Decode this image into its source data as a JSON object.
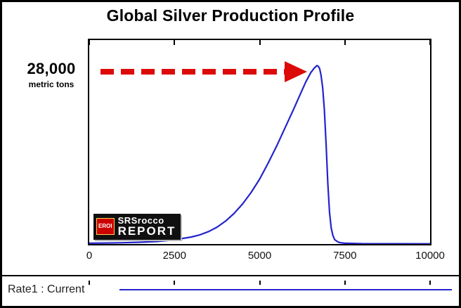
{
  "title": "Global Silver Production Profile",
  "annotation": {
    "value": "28,000",
    "unit": "metric tons"
  },
  "legend": {
    "label": "Rate1 : Current"
  },
  "logo": {
    "badge": "EROI",
    "line1": "SRSrocco",
    "line2": "REPORT"
  },
  "colors": {
    "curve": "#2323cc",
    "arrow": "#dd0a0a",
    "legend_line": "#2323cc",
    "axis": "#000000"
  },
  "chart_data": {
    "type": "line",
    "title": "Global Silver Production Profile",
    "xlabel": "",
    "ylabel": "metric tons",
    "xlim": [
      0,
      10000
    ],
    "ylim": [
      0,
      32000
    ],
    "grid": false,
    "legend_position": "bottom",
    "x_ticks": [
      0,
      2500,
      5000,
      7500,
      10000
    ],
    "x_tick_labels": [
      "0",
      "2500",
      "5000",
      "7500",
      "10000"
    ],
    "peak_annotation": {
      "label": "28,000 metric tons",
      "value": 28000,
      "x": 6680
    },
    "series": [
      {
        "name": "Rate1 : Current",
        "x": [
          0,
          500,
          1000,
          1500,
          2000,
          2500,
          3000,
          3250,
          3500,
          3750,
          4000,
          4250,
          4500,
          4750,
          5000,
          5250,
          5500,
          5750,
          6000,
          6200,
          6350,
          6500,
          6600,
          6680,
          6720,
          6760,
          6800,
          6850,
          6900,
          6950,
          7000,
          7050,
          7100,
          7150,
          7200,
          7300,
          7400,
          7500,
          8000,
          9000,
          10000
        ],
        "y": [
          120,
          150,
          200,
          280,
          400,
          650,
          1100,
          1450,
          1950,
          2650,
          3600,
          4800,
          6300,
          8100,
          10200,
          12700,
          15400,
          18300,
          21200,
          23600,
          25400,
          26900,
          27600,
          28000,
          27900,
          27500,
          26500,
          24500,
          21000,
          15500,
          9500,
          5000,
          2500,
          1300,
          700,
          300,
          180,
          120,
          60,
          40,
          30
        ]
      }
    ]
  }
}
